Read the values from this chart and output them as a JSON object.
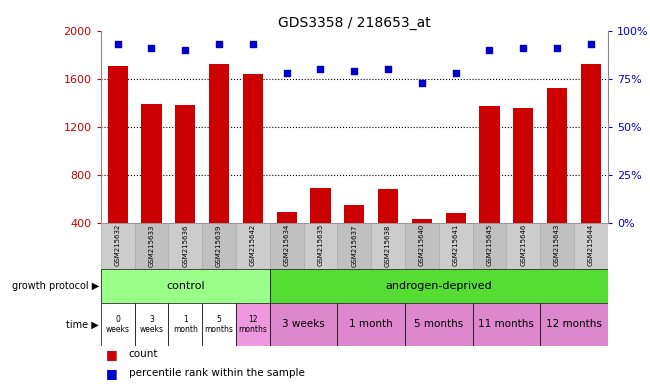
{
  "title": "GDS3358 / 218653_at",
  "samples": [
    "GSM215632",
    "GSM215633",
    "GSM215636",
    "GSM215639",
    "GSM215642",
    "GSM215634",
    "GSM215635",
    "GSM215637",
    "GSM215638",
    "GSM215640",
    "GSM215641",
    "GSM215645",
    "GSM215646",
    "GSM215643",
    "GSM215644"
  ],
  "counts": [
    1710,
    1390,
    1380,
    1720,
    1640,
    490,
    690,
    550,
    680,
    430,
    480,
    1370,
    1360,
    1520,
    1720
  ],
  "percentile": [
    93,
    91,
    90,
    93,
    93,
    78,
    80,
    79,
    80,
    73,
    78,
    90,
    91,
    91,
    93
  ],
  "ylim_left": [
    400,
    2000
  ],
  "ylim_right": [
    0,
    100
  ],
  "yticks_left": [
    400,
    800,
    1200,
    1600,
    2000
  ],
  "yticks_right": [
    0,
    25,
    50,
    75,
    100
  ],
  "bar_color": "#cc0000",
  "dot_color": "#0000cc",
  "protocol_control_color": "#99ff88",
  "protocol_androgen_color": "#55dd33",
  "time_color_white": "#ffffff",
  "time_color_pink_light": "#ee99dd",
  "time_color_pink": "#dd77cc",
  "bg_color": "#ffffff",
  "tick_label_color_left": "#cc0000",
  "tick_label_color_right": "#0000cc",
  "sample_bg_color": "#cccccc"
}
